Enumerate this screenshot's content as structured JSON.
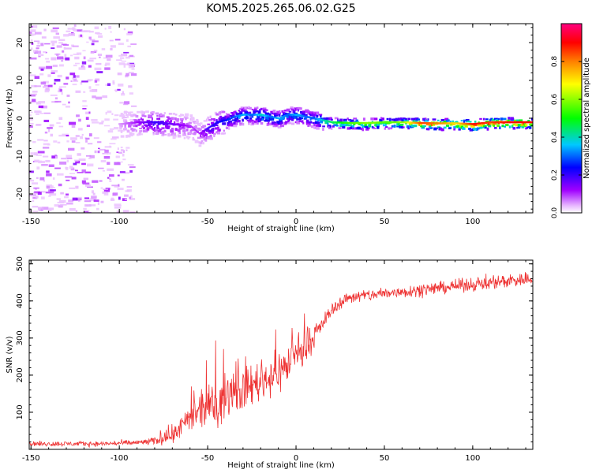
{
  "title": "KOM5.2025.265.06.02.G25",
  "chart_data": [
    {
      "type": "heatmap",
      "xlabel": "Height of straight line (km)",
      "ylabel": "Frequency (Hz)",
      "xlim": [
        -151,
        134
      ],
      "ylim": [
        -25,
        25
      ],
      "xticks": [
        -150,
        -100,
        -50,
        0,
        50,
        100
      ],
      "yticks": [
        -20,
        -10,
        0,
        10,
        20
      ],
      "grid": false,
      "colorbar": {
        "label": "Normalized spectral amplitude",
        "range": [
          0.0,
          1.0
        ],
        "ticks": [
          "0.0",
          "0.2",
          "0.4",
          "0.6",
          "0.8"
        ],
        "colormap": [
          "#ffffff",
          "#e6b3ff",
          "#a000ff",
          "#0000ff",
          "#00c8ff",
          "#00ff00",
          "#ffff00",
          "#ff8000",
          "#ff0000",
          "#ff0080"
        ]
      },
      "ridge": {
        "height_km": [
          -100,
          -90,
          -80,
          -70,
          -60,
          -55,
          -50,
          -45,
          -40,
          -35,
          -30,
          -25,
          -20,
          -15,
          -10,
          -5,
          0,
          5,
          10,
          15,
          20,
          30,
          40,
          50,
          60,
          70,
          80,
          90,
          100,
          110,
          120,
          134
        ],
        "frequency_hz": [
          -1.5,
          -1.0,
          -1.0,
          -1.5,
          -2.0,
          -4.0,
          -2.5,
          -1.0,
          -0.5,
          0.5,
          1.0,
          1.0,
          1.0,
          0.5,
          0.0,
          1.0,
          1.0,
          0.5,
          0.0,
          -0.5,
          -1.0,
          -1.2,
          -1.2,
          -1.0,
          -1.0,
          -1.2,
          -1.3,
          -1.3,
          -1.5,
          -1.0,
          -1.0,
          -1.0
        ],
        "peak_amplitude": [
          0.05,
          0.12,
          0.2,
          0.15,
          0.1,
          0.1,
          0.2,
          0.22,
          0.25,
          0.3,
          0.35,
          0.3,
          0.4,
          0.3,
          0.35,
          0.3,
          0.35,
          0.3,
          0.3,
          0.4,
          0.45,
          0.55,
          0.6,
          0.55,
          0.6,
          0.85,
          0.8,
          0.7,
          0.9,
          0.85,
          0.9,
          0.9
        ]
      }
    },
    {
      "type": "line",
      "xlabel": "Height of straight line (km)",
      "ylabel": "SNR (v/v)",
      "xlim": [
        -151,
        134
      ],
      "ylim": [
        0,
        510
      ],
      "xticks": [
        -150,
        -100,
        -50,
        0,
        50,
        100
      ],
      "yticks": [
        100,
        200,
        300,
        400,
        500
      ],
      "color": "#ee3333",
      "series": [
        {
          "name": "SNR",
          "envelope_x": [
            -150,
            -130,
            -110,
            -90,
            -80,
            -75,
            -70,
            -65,
            -60,
            -55,
            -50,
            -45,
            -40,
            -35,
            -30,
            -25,
            -20,
            -15,
            -10,
            -5,
            0,
            5,
            10,
            15,
            20,
            25,
            30,
            40,
            50,
            60,
            70,
            80,
            90,
            100,
            110,
            120,
            134
          ],
          "mean": [
            15,
            15,
            15,
            18,
            22,
            30,
            40,
            60,
            80,
            100,
            110,
            120,
            140,
            150,
            160,
            175,
            185,
            195,
            210,
            225,
            250,
            260,
            300,
            340,
            375,
            395,
            410,
            415,
            420,
            425,
            430,
            435,
            440,
            445,
            450,
            455,
            460
          ],
          "spread": [
            10,
            10,
            10,
            12,
            15,
            25,
            35,
            45,
            60,
            70,
            80,
            85,
            90,
            90,
            85,
            80,
            80,
            80,
            85,
            80,
            70,
            60,
            40,
            30,
            25,
            25,
            25,
            25,
            25,
            25,
            25,
            25,
            25,
            28,
            28,
            30,
            30
          ]
        }
      ]
    }
  ]
}
